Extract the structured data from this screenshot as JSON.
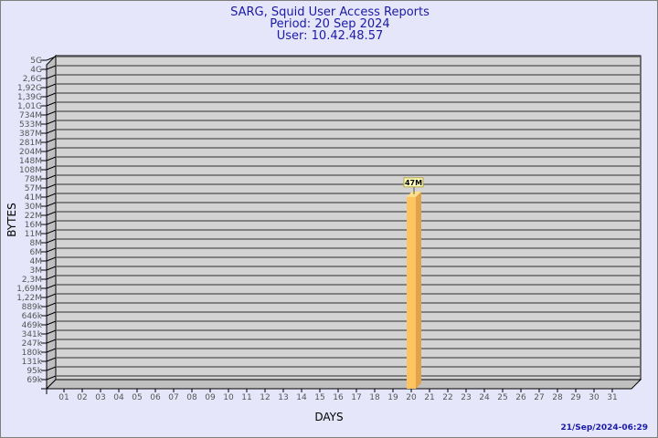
{
  "header": {
    "title": "SARG, Squid User Access Reports",
    "period": "Period: 20 Sep 2024",
    "user": "User: 10.42.48.57"
  },
  "footer": {
    "timestamp": "21/Sep/2024-06:29"
  },
  "colors": {
    "background": "#e6e6fa",
    "plot": "#d3d3d3",
    "bar": "#ffc462",
    "bar_side": "#e0a24a",
    "title": "#1a1aa6"
  },
  "chart_data": {
    "type": "bar",
    "xlabel": "DAYS",
    "ylabel": "BYTES",
    "y_scale": "log",
    "grid": true,
    "y_ticks": [
      "5G",
      "4G",
      "2,6G",
      "1,92G",
      "1,39G",
      "1,01G",
      "734M",
      "533M",
      "387M",
      "281M",
      "204M",
      "148M",
      "108M",
      "78M",
      "57M",
      "41M",
      "30M",
      "22M",
      "16M",
      "11M",
      "8M",
      "6M",
      "4M",
      "3M",
      "2,3M",
      "1,69M",
      "1,22M",
      "889k",
      "646k",
      "469k",
      "341k",
      "247k",
      "180k",
      "131k",
      "95k",
      "69k"
    ],
    "categories": [
      "01",
      "02",
      "03",
      "04",
      "05",
      "06",
      "07",
      "08",
      "09",
      "10",
      "11",
      "12",
      "13",
      "14",
      "15",
      "16",
      "17",
      "18",
      "19",
      "20",
      "21",
      "22",
      "23",
      "24",
      "25",
      "26",
      "27",
      "28",
      "29",
      "30",
      "31"
    ],
    "bars": [
      {
        "day": "20",
        "value_label": "47M"
      }
    ]
  }
}
